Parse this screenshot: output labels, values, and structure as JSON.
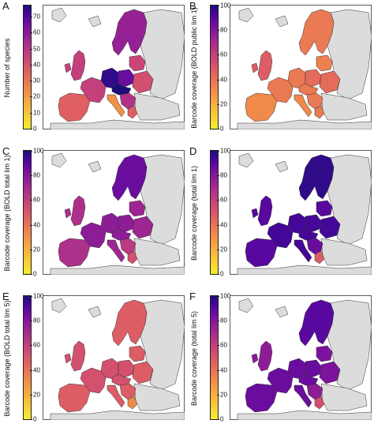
{
  "panels": [
    {
      "letter": "A",
      "label": "Number of species",
      "ticks": [
        "0",
        "10",
        "20",
        "30",
        "40",
        "50",
        "60",
        "70"
      ],
      "tick_values": [
        0,
        10,
        20,
        30,
        40,
        50,
        60,
        70
      ],
      "max": 77
    },
    {
      "letter": "B",
      "label": "Barcode coverage (BOLD public lim 1)",
      "ticks": [
        "0",
        "20",
        "40",
        "60",
        "80",
        "100"
      ],
      "tick_values": [
        0,
        20,
        40,
        60,
        80,
        100
      ],
      "max": 100
    },
    {
      "letter": "C",
      "label": "Barcode coverage (BOLD total lim 1)",
      "ticks": [
        "0",
        "20",
        "40",
        "60",
        "80",
        "100"
      ],
      "tick_values": [
        0,
        20,
        40,
        60,
        80,
        100
      ],
      "max": 100
    },
    {
      "letter": "D",
      "label": "Barcode coverage (total lim 1)",
      "ticks": [
        "0",
        "20",
        "40",
        "60",
        "80",
        "100"
      ],
      "tick_values": [
        0,
        20,
        40,
        60,
        80,
        100
      ],
      "max": 100
    },
    {
      "letter": "E",
      "label": "Barcode coverage (BOLD total lim 5)",
      "ticks": [
        "0",
        "20",
        "40",
        "60",
        "80",
        "100"
      ],
      "tick_values": [
        0,
        20,
        40,
        60,
        80,
        100
      ],
      "max": 100
    },
    {
      "letter": "F",
      "label": "Barcode coverage (total lim 5)",
      "ticks": [
        "0",
        "20",
        "40",
        "60",
        "80",
        "100"
      ],
      "tick_values": [
        0,
        20,
        40,
        60,
        80,
        100
      ],
      "max": 100
    }
  ],
  "colors": {
    "land_other": "#dcdcdc",
    "sea": "#ffffff",
    "border": "#333333",
    "palette": [
      "#f2ee30",
      "#f9b53e",
      "#f08a4b",
      "#e2635f",
      "#c94479",
      "#a62b8f",
      "#7c139d",
      "#4f05a0",
      "#1c0f7a"
    ]
  },
  "map_values": {
    "A": {
      "nordic": 52,
      "uk": 40,
      "iberia": 30,
      "france": 40,
      "germany": 73,
      "poland": 62,
      "baltic": 38,
      "italy": 18,
      "balkan": 45,
      "central": 77,
      "east": 35,
      "greece": 30
    },
    "B": {
      "nordic": 30,
      "uk": 40,
      "iberia": 25,
      "france": 30,
      "germany": 30,
      "poland": 35,
      "baltic": 28,
      "italy": 25,
      "balkan": 30,
      "central": 30,
      "east": 35,
      "greece": 30
    },
    "C": {
      "nordic": 80,
      "uk": 60,
      "iberia": 60,
      "france": 70,
      "germany": 70,
      "poland": 70,
      "baltic": 65,
      "italy": 65,
      "balkan": 55,
      "central": 70,
      "east": 65,
      "greece": 45
    },
    "D": {
      "nordic": 95,
      "uk": 85,
      "iberia": 85,
      "france": 90,
      "germany": 90,
      "poland": 90,
      "baltic": 85,
      "italy": 90,
      "balkan": 80,
      "central": 90,
      "east": 90,
      "greece": 40
    },
    "E": {
      "nordic": 40,
      "uk": 45,
      "iberia": 40,
      "france": 45,
      "germany": 45,
      "poland": 45,
      "baltic": 40,
      "italy": 40,
      "balkan": 40,
      "central": 45,
      "east": 40,
      "greece": 25
    },
    "F": {
      "nordic": 85,
      "uk": 70,
      "iberia": 80,
      "france": 80,
      "germany": 80,
      "poland": 80,
      "baltic": 75,
      "italy": 80,
      "balkan": 70,
      "central": 80,
      "east": 75,
      "greece": 45
    }
  }
}
